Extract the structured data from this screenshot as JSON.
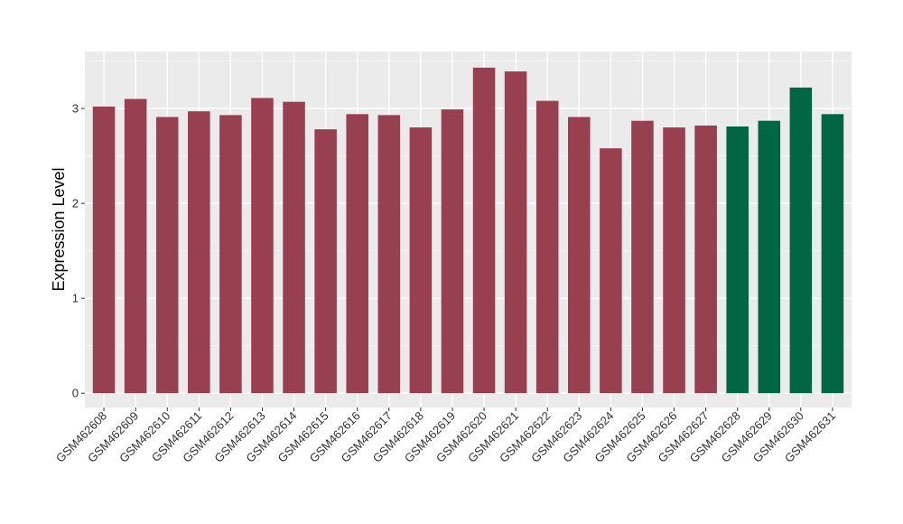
{
  "chart_data": {
    "type": "bar",
    "xlabel": "",
    "ylabel": "Expression Level",
    "ylim": [
      -0.15,
      3.6
    ],
    "yticks": [
      0,
      1,
      2,
      3
    ],
    "grid": true,
    "legend": "none",
    "background": "#EBEBEB",
    "colors": {
      "group_a": "#98404F",
      "group_b": "#006643"
    },
    "categories": [
      "GSM462608",
      "GSM462609",
      "GSM462610",
      "GSM462611",
      "GSM462612",
      "GSM462613",
      "GSM462614",
      "GSM462615",
      "GSM462616",
      "GSM462617",
      "GSM462618",
      "GSM462619",
      "GSM462620",
      "GSM462621",
      "GSM462622",
      "GSM462623",
      "GSM462624",
      "GSM462625",
      "GSM462626",
      "GSM462627",
      "GSM462628",
      "GSM462629",
      "GSM462630",
      "GSM462631"
    ],
    "values": [
      3.02,
      3.1,
      2.91,
      2.97,
      2.93,
      3.11,
      3.07,
      2.78,
      2.94,
      2.93,
      2.8,
      2.99,
      3.43,
      3.39,
      3.08,
      2.91,
      2.58,
      2.87,
      2.8,
      2.82,
      2.81,
      2.87,
      3.22,
      2.94
    ],
    "bar_groups": [
      "group_a",
      "group_a",
      "group_a",
      "group_a",
      "group_a",
      "group_a",
      "group_a",
      "group_a",
      "group_a",
      "group_a",
      "group_a",
      "group_a",
      "group_a",
      "group_a",
      "group_a",
      "group_a",
      "group_a",
      "group_a",
      "group_a",
      "group_a",
      "group_b",
      "group_b",
      "group_b",
      "group_b"
    ]
  }
}
